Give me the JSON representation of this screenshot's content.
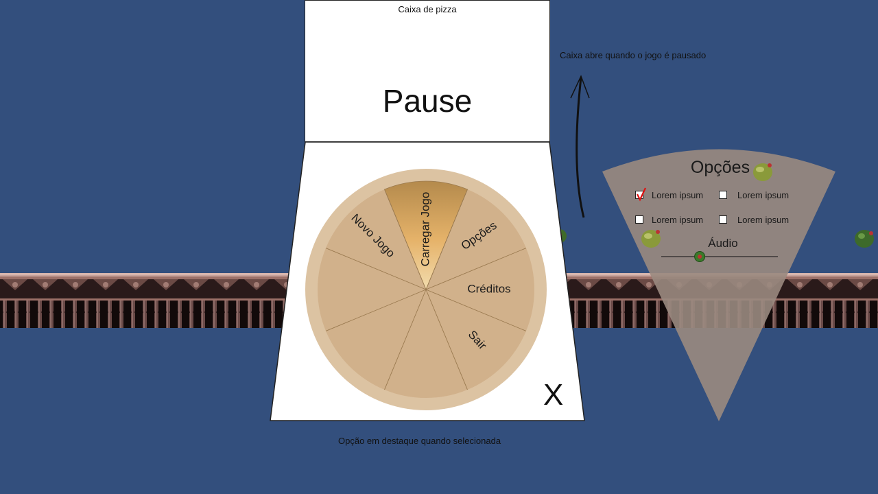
{
  "lid": {
    "caption": "Caixa de pizza",
    "title": "Pause"
  },
  "annotations": {
    "opens": "Caixa abre quando o jogo é pausado",
    "highlight": "Opção em destaque  quando selecionada"
  },
  "pizza_menu": {
    "selected": "Carregar Jogo",
    "items": [
      "Carregar Jogo",
      "Opções",
      "Créditos",
      "Sair",
      "Novo Jogo"
    ]
  },
  "close_label": "X",
  "options_panel": {
    "title": "Opções",
    "checkboxes": [
      {
        "label": "Lorem ipsum",
        "checked": true
      },
      {
        "label": "Lorem ipsum",
        "checked": false
      },
      {
        "label": "Lorem ipsum",
        "checked": false
      },
      {
        "label": "Lorem ipsum",
        "checked": false
      }
    ],
    "audio_label": "Áudio",
    "audio_level": 0.33
  },
  "colors": {
    "background": "#334f7d",
    "pizza": "#d1b18b",
    "crust": "#dcc3a2",
    "highlight": "#e6b36a",
    "panel": "#9a8a80",
    "check": "#e01010"
  }
}
